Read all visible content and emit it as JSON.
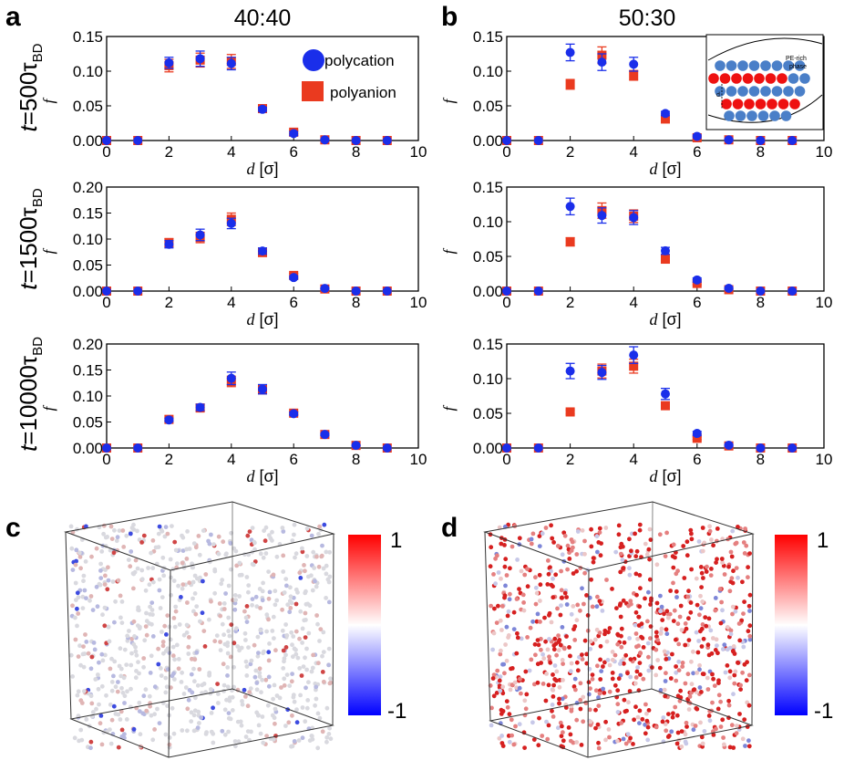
{
  "figure": {
    "panel_letters": [
      "a",
      "b",
      "c",
      "d"
    ],
    "column_titles": [
      "40:40",
      "50:30"
    ],
    "row_labels": [
      {
        "pre": "t",
        "eq": "=500",
        "tau": "τ",
        "sub": "BD"
      },
      {
        "pre": "t",
        "eq": "=1500",
        "tau": "τ",
        "sub": "BD"
      },
      {
        "pre": "t",
        "eq": "=10000",
        "tau": "τ",
        "sub": "BD"
      }
    ],
    "legend": {
      "polycation": "polycation",
      "polyanion": "polyanion"
    },
    "inset": {
      "label_line1": "PE-rich",
      "label_line2": "phase",
      "d_label": "d"
    },
    "colorbar": {
      "max_label": "1",
      "min_label": "-1"
    },
    "colors": {
      "polycation": "#1a2eea",
      "polyanion": "#ea3a1f",
      "cbar_top": "#ff0000",
      "cbar_mid": "#ffffff",
      "cbar_bottom": "#0000ff"
    }
  },
  "chart_data": [
    {
      "id": "a-t500",
      "type": "scatter",
      "title": "40:40",
      "xlabel": "d [σ]",
      "ylabel": "f",
      "xlim": [
        0,
        10
      ],
      "ylim": [
        0,
        0.15
      ],
      "xticks": [
        "0",
        "2",
        "4",
        "6",
        "8",
        "10"
      ],
      "yticks": [
        "0.00",
        "0.05",
        "0.10",
        "0.15"
      ],
      "x": [
        0,
        1,
        2,
        3,
        4,
        5,
        6,
        7,
        8,
        9
      ],
      "series": [
        {
          "name": "polyanion",
          "marker": "square",
          "values": [
            0,
            0,
            0.108,
            0.116,
            0.114,
            0.046,
            0.012,
            0.001,
            0,
            0
          ],
          "errors": [
            0,
            0,
            0.009,
            0.01,
            0.01,
            0.003,
            0.003,
            0.001,
            0,
            0
          ]
        },
        {
          "name": "polycation",
          "marker": "circle",
          "values": [
            0,
            0,
            0.112,
            0.118,
            0.111,
            0.045,
            0.01,
            0.001,
            0,
            0
          ],
          "errors": [
            0,
            0,
            0.008,
            0.011,
            0.009,
            0.003,
            0.003,
            0.001,
            0,
            0
          ]
        }
      ]
    },
    {
      "id": "b-t500",
      "type": "scatter",
      "title": "50:30",
      "xlabel": "d [σ]",
      "ylabel": "f",
      "xlim": [
        0,
        10
      ],
      "ylim": [
        0,
        0.15
      ],
      "xticks": [
        "0",
        "2",
        "4",
        "6",
        "8",
        "10"
      ],
      "yticks": [
        "0.00",
        "0.05",
        "0.10",
        "0.15"
      ],
      "x": [
        0,
        1,
        2,
        3,
        4,
        5,
        6,
        7,
        8,
        9
      ],
      "series": [
        {
          "name": "polyanion",
          "marker": "square",
          "values": [
            0,
            0,
            0.081,
            0.123,
            0.094,
            0.031,
            0.004,
            0.001,
            0,
            0
          ],
          "errors": [
            0,
            0,
            0.007,
            0.012,
            0.007,
            0.002,
            0.002,
            0.001,
            0,
            0
          ]
        },
        {
          "name": "polycation",
          "marker": "circle",
          "values": [
            0,
            0,
            0.127,
            0.113,
            0.11,
            0.039,
            0.006,
            0.001,
            0,
            0
          ],
          "errors": [
            0,
            0,
            0.012,
            0.012,
            0.01,
            0.003,
            0.002,
            0.001,
            0,
            0
          ]
        }
      ]
    },
    {
      "id": "a-t1500",
      "type": "scatter",
      "title": "",
      "xlabel": "d [σ]",
      "ylabel": "f",
      "xlim": [
        0,
        10
      ],
      "ylim": [
        0,
        0.2
      ],
      "xticks": [
        "0",
        "2",
        "4",
        "6",
        "8",
        "10"
      ],
      "yticks": [
        "0.00",
        "0.05",
        "0.10",
        "0.15",
        "0.20"
      ],
      "x": [
        0,
        1,
        2,
        3,
        4,
        5,
        6,
        7,
        8,
        9
      ],
      "series": [
        {
          "name": "polyanion",
          "marker": "square",
          "values": [
            0,
            0,
            0.093,
            0.103,
            0.138,
            0.074,
            0.03,
            0.004,
            0,
            0
          ],
          "errors": [
            0,
            0,
            0.008,
            0.01,
            0.012,
            0.005,
            0.004,
            0.001,
            0,
            0
          ]
        },
        {
          "name": "polycation",
          "marker": "circle",
          "values": [
            0,
            0,
            0.09,
            0.108,
            0.13,
            0.077,
            0.026,
            0.005,
            0,
            0
          ],
          "errors": [
            0,
            0,
            0.007,
            0.011,
            0.01,
            0.006,
            0.003,
            0.001,
            0,
            0
          ]
        }
      ]
    },
    {
      "id": "b-t1500",
      "type": "scatter",
      "title": "",
      "xlabel": "d [σ]",
      "ylabel": "f",
      "xlim": [
        0,
        10
      ],
      "ylim": [
        0,
        0.15
      ],
      "xticks": [
        "0",
        "2",
        "4",
        "6",
        "8",
        "10"
      ],
      "yticks": [
        "0.00",
        "0.05",
        "0.10",
        "0.15"
      ],
      "x": [
        0,
        1,
        2,
        3,
        4,
        5,
        6,
        7,
        8,
        9
      ],
      "series": [
        {
          "name": "polyanion",
          "marker": "square",
          "values": [
            0,
            0,
            0.071,
            0.116,
            0.108,
            0.046,
            0.011,
            0.002,
            0,
            0
          ],
          "errors": [
            0,
            0,
            0.006,
            0.011,
            0.009,
            0.004,
            0.002,
            0.001,
            0,
            0
          ]
        },
        {
          "name": "polycation",
          "marker": "circle",
          "values": [
            0,
            0,
            0.122,
            0.109,
            0.106,
            0.058,
            0.016,
            0.004,
            0,
            0
          ],
          "errors": [
            0,
            0,
            0.012,
            0.011,
            0.01,
            0.005,
            0.003,
            0.001,
            0,
            0
          ]
        }
      ]
    },
    {
      "id": "a-t10000",
      "type": "scatter",
      "title": "",
      "xlabel": "d [σ]",
      "ylabel": "f",
      "xlim": [
        0,
        10
      ],
      "ylim": [
        0,
        0.2
      ],
      "xticks": [
        "0",
        "2",
        "4",
        "6",
        "8",
        "10"
      ],
      "yticks": [
        "0.00",
        "0.05",
        "0.10",
        "0.15",
        "0.20"
      ],
      "x": [
        0,
        1,
        2,
        3,
        4,
        5,
        6,
        7,
        8,
        9
      ],
      "series": [
        {
          "name": "polyanion",
          "marker": "square",
          "values": [
            0,
            0,
            0.055,
            0.077,
            0.128,
            0.112,
            0.067,
            0.026,
            0.005,
            0
          ],
          "errors": [
            0,
            0,
            0.003,
            0.005,
            0.01,
            0.008,
            0.003,
            0.002,
            0.001,
            0
          ]
        },
        {
          "name": "polycation",
          "marker": "circle",
          "values": [
            0,
            0,
            0.054,
            0.078,
            0.134,
            0.113,
            0.066,
            0.026,
            0.005,
            0
          ],
          "errors": [
            0,
            0,
            0.003,
            0.006,
            0.012,
            0.009,
            0.003,
            0.002,
            0.001,
            0
          ]
        }
      ]
    },
    {
      "id": "b-t10000",
      "type": "scatter",
      "title": "",
      "xlabel": "d [σ]",
      "ylabel": "f",
      "xlim": [
        0,
        10
      ],
      "ylim": [
        0,
        0.15
      ],
      "xticks": [
        "0",
        "2",
        "4",
        "6",
        "8",
        "10"
      ],
      "yticks": [
        "0.00",
        "0.05",
        "0.10",
        "0.15"
      ],
      "x": [
        0,
        1,
        2,
        3,
        4,
        5,
        6,
        7,
        8,
        9
      ],
      "series": [
        {
          "name": "polyanion",
          "marker": "square",
          "values": [
            0,
            0,
            0.052,
            0.111,
            0.118,
            0.061,
            0.014,
            0.003,
            0,
            0
          ],
          "errors": [
            0,
            0,
            0.003,
            0.01,
            0.01,
            0.005,
            0.002,
            0.001,
            0,
            0
          ]
        },
        {
          "name": "polycation",
          "marker": "circle",
          "values": [
            0,
            0,
            0.111,
            0.109,
            0.134,
            0.078,
            0.021,
            0.004,
            0,
            0
          ],
          "errors": [
            0,
            0,
            0.011,
            0.01,
            0.012,
            0.008,
            0.003,
            0.001,
            0,
            0
          ]
        }
      ]
    }
  ]
}
